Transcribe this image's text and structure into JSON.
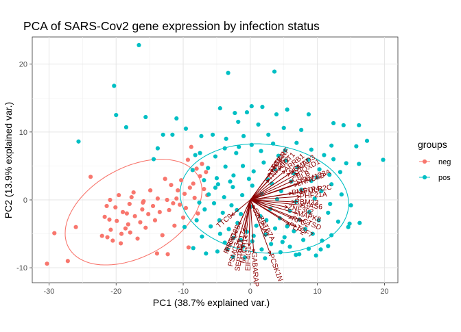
{
  "chart_data": {
    "type": "scatter",
    "title": "PCA of SARS-Cov2 gene expression by infection status",
    "xlabel": "PC1 (38.7% explained var.)",
    "ylabel": "PC2 (13.9% explained var.)",
    "xlim": [
      -32.5,
      22
    ],
    "ylim": [
      -12.2,
      24
    ],
    "xticks": [
      -30,
      -20,
      -10,
      0,
      10,
      20
    ],
    "yticks": [
      -10,
      0,
      10,
      20
    ],
    "grid": true,
    "legend": {
      "title": "groups",
      "position": "right",
      "entries": [
        {
          "label": "neg",
          "color": "#F8766D"
        },
        {
          "label": "pos",
          "color": "#00BFC4"
        }
      ]
    },
    "series": [
      {
        "name": "neg",
        "color": "#F8766D",
        "points": [
          [
            -30.3,
            -9.4
          ],
          [
            -29.2,
            -4.9
          ],
          [
            -27.2,
            -9.0
          ],
          [
            -26.0,
            -4.0
          ],
          [
            -23.8,
            3.4
          ],
          [
            -22.1,
            -5.3
          ],
          [
            -21.7,
            -2.5
          ],
          [
            -21.4,
            -0.9
          ],
          [
            -21.0,
            -2.9
          ],
          [
            -20.9,
            0.0
          ],
          [
            -20.8,
            -4.4
          ],
          [
            -20.5,
            -6.0
          ],
          [
            -20.1,
            -1.1
          ],
          [
            -19.9,
            -3.1
          ],
          [
            -19.6,
            0.7
          ],
          [
            -19.3,
            -6.4
          ],
          [
            -19.2,
            -5.0
          ],
          [
            -19.0,
            -1.8
          ],
          [
            -18.6,
            -4.2
          ],
          [
            -18.4,
            -2.0
          ],
          [
            -18.2,
            -3.6
          ],
          [
            -18.0,
            -0.6
          ],
          [
            -17.9,
            -4.8
          ],
          [
            -17.7,
            0.4
          ],
          [
            -17.4,
            1.1
          ],
          [
            -17.2,
            -2.4
          ],
          [
            -16.8,
            -5.7
          ],
          [
            -16.4,
            -3.3
          ],
          [
            -16.1,
            -1.4
          ],
          [
            -15.9,
            -0.2
          ],
          [
            -15.6,
            -4.1
          ],
          [
            -15.2,
            -2.1
          ],
          [
            -14.9,
            1.4
          ],
          [
            -14.5,
            -0.9
          ],
          [
            -14.2,
            -3.0
          ],
          [
            -13.8,
            0.2
          ],
          [
            -13.5,
            -1.8
          ],
          [
            -13.1,
            -5.2
          ],
          [
            -12.7,
            3.1
          ],
          [
            -12.4,
            0.0
          ],
          [
            -12.1,
            -1.5
          ],
          [
            -11.8,
            2.2
          ],
          [
            -11.5,
            -0.5
          ],
          [
            -11.3,
            -3.8
          ],
          [
            -11.0,
            0.2
          ],
          [
            -10.8,
            1.4
          ],
          [
            -10.5,
            -0.7
          ],
          [
            -10.3,
            2.9
          ],
          [
            -10.0,
            -2.6
          ],
          [
            -9.8,
            0.9
          ],
          [
            -9.6,
            -1.2
          ],
          [
            -9.3,
            5.9
          ],
          [
            -9.0,
            1.8
          ],
          [
            -8.8,
            7.8
          ],
          [
            -8.5,
            2.4
          ],
          [
            -8.3,
            0.3
          ],
          [
            -8.0,
            4.6
          ],
          [
            -7.8,
            -2.0
          ],
          [
            -7.5,
            3.5
          ],
          [
            -7.2,
            5.3
          ],
          [
            -6.9,
            1.6
          ],
          [
            -6.6,
            4.1
          ],
          [
            -6.4,
            0.7
          ],
          [
            -16.0,
            -0.4
          ],
          [
            -13.9,
            -7.9
          ],
          [
            -12.3,
            -8.0
          ],
          [
            -9.2,
            -7.0
          ],
          [
            -21.3,
            -5.5
          ]
        ]
      },
      {
        "name": "pos",
        "color": "#00BFC4",
        "points": [
          [
            -25.6,
            8.6
          ],
          [
            -20.3,
            16.8
          ],
          [
            -18.5,
            10.7
          ],
          [
            -16.6,
            22.8
          ],
          [
            -15.6,
            12.2
          ],
          [
            -14.4,
            6.0
          ],
          [
            -13.0,
            9.6
          ],
          [
            -11.6,
            9.6
          ],
          [
            -20.0,
            12.5
          ],
          [
            -13.8,
            7.6
          ],
          [
            -11.0,
            12.0
          ],
          [
            -9.6,
            10.5
          ],
          [
            -3.3,
            18.7
          ],
          [
            3.6,
            18.9
          ],
          [
            0.2,
            13.8
          ],
          [
            1.8,
            13.7
          ],
          [
            3.9,
            12.6
          ],
          [
            -4.5,
            13.5
          ],
          [
            -2.3,
            12.8
          ],
          [
            -0.5,
            12.9
          ],
          [
            5.5,
            13.3
          ],
          [
            8.7,
            12.6
          ],
          [
            12.4,
            11.3
          ],
          [
            13.9,
            11.0
          ],
          [
            16.2,
            11.0
          ],
          [
            17.4,
            8.7
          ],
          [
            19.8,
            5.9
          ],
          [
            15.8,
            7.9
          ],
          [
            12.1,
            8.0
          ],
          [
            7.6,
            10.3
          ],
          [
            5.0,
            10.6
          ],
          [
            1.2,
            11.1
          ],
          [
            -1.8,
            11.5
          ],
          [
            -7.3,
            9.4
          ],
          [
            -5.6,
            9.6
          ],
          [
            -3.6,
            9.0
          ],
          [
            -1.0,
            9.4
          ],
          [
            2.7,
            9.6
          ],
          [
            -8.2,
            6.6
          ],
          [
            -8.6,
            4.4
          ],
          [
            -7.5,
            6.9
          ],
          [
            -5.2,
            6.4
          ],
          [
            -3.8,
            7.6
          ],
          [
            -2.1,
            6.9
          ],
          [
            0.2,
            8.1
          ],
          [
            1.6,
            7.2
          ],
          [
            3.4,
            8.3
          ],
          [
            5.2,
            7.3
          ],
          [
            6.9,
            8.4
          ],
          [
            9.1,
            7.4
          ],
          [
            11.0,
            6.6
          ],
          [
            12.4,
            6.0
          ],
          [
            14.3,
            5.4
          ],
          [
            16.2,
            5.3
          ],
          [
            -6.9,
            2.9
          ],
          [
            -6.3,
            4.7
          ],
          [
            -5.0,
            3.2
          ],
          [
            -3.7,
            4.9
          ],
          [
            -2.5,
            3.6
          ],
          [
            -1.1,
            5.0
          ],
          [
            0.5,
            4.2
          ],
          [
            2.0,
            5.5
          ],
          [
            3.7,
            4.5
          ],
          [
            5.3,
            5.8
          ],
          [
            7.0,
            4.8
          ],
          [
            8.6,
            5.9
          ],
          [
            10.3,
            4.5
          ],
          [
            11.8,
            3.7
          ],
          [
            13.4,
            4.1
          ],
          [
            -6.2,
            0.8
          ],
          [
            -5.2,
            1.8
          ],
          [
            -3.9,
            0.4
          ],
          [
            -2.6,
            1.9
          ],
          [
            -1.2,
            0.7
          ],
          [
            0.3,
            2.1
          ],
          [
            1.7,
            0.9
          ],
          [
            3.2,
            2.4
          ],
          [
            4.6,
            1.3
          ],
          [
            6.1,
            2.7
          ],
          [
            7.6,
            1.5
          ],
          [
            9.1,
            2.8
          ],
          [
            10.6,
            1.3
          ],
          [
            12.1,
            2.3
          ],
          [
            13.6,
            0.8
          ],
          [
            15.0,
            -0.8
          ],
          [
            -6.8,
            -1.4
          ],
          [
            -5.4,
            -0.5
          ],
          [
            -4.1,
            -1.9
          ],
          [
            -2.8,
            -0.8
          ],
          [
            -1.4,
            -2.1
          ],
          [
            0.1,
            -1.0
          ],
          [
            1.5,
            -2.4
          ],
          [
            3.0,
            -1.3
          ],
          [
            4.4,
            -2.7
          ],
          [
            5.9,
            -1.6
          ],
          [
            7.3,
            -2.9
          ],
          [
            8.8,
            -1.8
          ],
          [
            10.2,
            -3.0
          ],
          [
            11.6,
            -1.9
          ],
          [
            13.1,
            -3.2
          ],
          [
            14.6,
            -4.0
          ],
          [
            -5.9,
            -3.9
          ],
          [
            -4.6,
            -3.0
          ],
          [
            -3.2,
            -4.3
          ],
          [
            -1.9,
            -3.4
          ],
          [
            -0.5,
            -4.7
          ],
          [
            0.9,
            -3.8
          ],
          [
            2.3,
            -5.1
          ],
          [
            3.7,
            -4.2
          ],
          [
            5.1,
            -5.5
          ],
          [
            6.5,
            -4.6
          ],
          [
            7.9,
            -5.9
          ],
          [
            9.3,
            -5.0
          ],
          [
            10.7,
            -6.0
          ],
          [
            12.1,
            -5.2
          ],
          [
            14.8,
            -3.5
          ],
          [
            16.3,
            -3.4
          ],
          [
            -3.8,
            -6.3
          ],
          [
            -2.5,
            -5.6
          ],
          [
            -1.1,
            -6.9
          ],
          [
            0.3,
            -6.1
          ],
          [
            1.7,
            -7.3
          ],
          [
            3.1,
            -6.5
          ],
          [
            4.5,
            -7.7
          ],
          [
            5.9,
            -6.9
          ],
          [
            7.3,
            -8.0
          ],
          [
            8.7,
            -7.2
          ],
          [
            2.2,
            -8.6
          ],
          [
            -7.2,
            -5.4
          ],
          [
            -4.9,
            -7.6
          ],
          [
            -2.6,
            -8.4
          ],
          [
            -8.5,
            -7.1
          ],
          [
            -9.8,
            -4.0
          ],
          [
            -8.0,
            -3.0
          ],
          [
            -6.6,
            -7.9
          ],
          [
            -3.4,
            -7.3
          ],
          [
            -0.8,
            -8.5
          ],
          [
            0.5,
            -5.3
          ],
          [
            6.8,
            -8.1
          ],
          [
            9.8,
            -8.2
          ],
          [
            11.6,
            -6.8
          ],
          [
            -7.6,
            -0.4
          ],
          [
            -4.8,
            2.3
          ],
          [
            -0.2,
            3.1
          ],
          [
            2.6,
            3.0
          ],
          [
            6.5,
            3.9
          ],
          [
            9.9,
            3.3
          ],
          [
            4.2,
            6.5
          ],
          [
            -1.7,
            7.8
          ],
          [
            -3.0,
            2.7
          ],
          [
            1.0,
            -0.3
          ],
          [
            4.0,
            0.1
          ],
          [
            6.8,
            -0.3
          ],
          [
            9.6,
            0.2
          ],
          [
            11.9,
            -0.6
          ],
          [
            -2.0,
            -1.5
          ],
          [
            2.4,
            -3.0
          ],
          [
            5.5,
            -3.9
          ],
          [
            8.2,
            -4.3
          ],
          [
            -4.5,
            -5.0
          ],
          [
            -1.4,
            -5.9
          ],
          [
            4.8,
            -6.2
          ],
          [
            10.5,
            -7.3
          ]
        ]
      }
    ],
    "ellipses": [
      {
        "name": "neg",
        "cx": -17.4,
        "cy": -1.8,
        "rx": 11.0,
        "ry": 6.6,
        "angle_deg": 28
      },
      {
        "name": "pos",
        "cx": 2.1,
        "cy": 0.2,
        "rx": 12.6,
        "ry": 8.0,
        "angle_deg": -6
      }
    ],
    "loadings_color": "#8B0000",
    "loadings": [
      {
        "label": "RTKN",
        "x": 3.4,
        "y": 4.6
      },
      {
        "label": "NARF",
        "x": 3.9,
        "y": 5.2
      },
      {
        "label": "CDT1",
        "x": 4.6,
        "y": 4.8
      },
      {
        "label": "ARRB1",
        "x": 5.2,
        "y": 4.3
      },
      {
        "label": "TTC3",
        "x": 3.0,
        "y": 4.0
      },
      {
        "label": "NOL12",
        "x": 5.9,
        "y": 3.9
      },
      {
        "label": "TNFAIP2",
        "x": 2.8,
        "y": 3.0
      },
      {
        "label": "SMAD3",
        "x": 6.5,
        "y": 4.3
      },
      {
        "label": "HOXD1",
        "x": 7.1,
        "y": 3.9
      },
      {
        "label": "LRRC8D",
        "x": 7.0,
        "y": 2.3
      },
      {
        "label": "CBLB",
        "x": 6.3,
        "y": 2.8
      },
      {
        "label": "FAM133A",
        "x": 7.5,
        "y": 2.6
      },
      {
        "label": "POLR2C",
        "x": 7.9,
        "y": 1.2
      },
      {
        "label": "BMS1P4",
        "x": 6.2,
        "y": 1.0
      },
      {
        "label": "PHF21A",
        "x": 7.4,
        "y": 0.5
      },
      {
        "label": "RBM33",
        "x": 6.6,
        "y": -0.3
      },
      {
        "label": "GAS6",
        "x": 7.9,
        "y": -0.8
      },
      {
        "label": "ZNF302",
        "x": 5.6,
        "y": -1.1
      },
      {
        "label": "MAPK8",
        "x": 7.0,
        "y": -2.0
      },
      {
        "label": "RFC2",
        "x": 6.2,
        "y": -2.7
      },
      {
        "label": "PLP2",
        "x": 5.8,
        "y": -3.6
      },
      {
        "label": "CTSD",
        "x": 7.8,
        "y": -3.1
      },
      {
        "label": "TCF7",
        "x": 6.9,
        "y": -4.0
      },
      {
        "label": "TTC9",
        "x": -2.8,
        "y": -2.3
      },
      {
        "label": "PRRC2B",
        "x": -1.7,
        "y": -3.7
      },
      {
        "label": "SNX17",
        "x": -1.0,
        "y": -4.6
      },
      {
        "label": "RHOQ",
        "x": -2.3,
        "y": -5.0
      },
      {
        "label": "MTCH1",
        "x": -0.7,
        "y": -5.7
      },
      {
        "label": "PSMC3",
        "x": -1.9,
        "y": -6.3
      },
      {
        "label": "EIF4G1",
        "x": -0.2,
        "y": -6.8
      },
      {
        "label": "SEPT9",
        "x": -1.3,
        "y": -7.2
      },
      {
        "label": "GABARAP",
        "x": 0.5,
        "y": -7.7
      },
      {
        "label": "PCSK1N",
        "x": 3.0,
        "y": -8.0
      },
      {
        "label": "ZBTB7A",
        "x": 1.4,
        "y": -2.5
      },
      {
        "label": "SLC25A1",
        "x": 0.6,
        "y": -1.3
      }
    ]
  }
}
